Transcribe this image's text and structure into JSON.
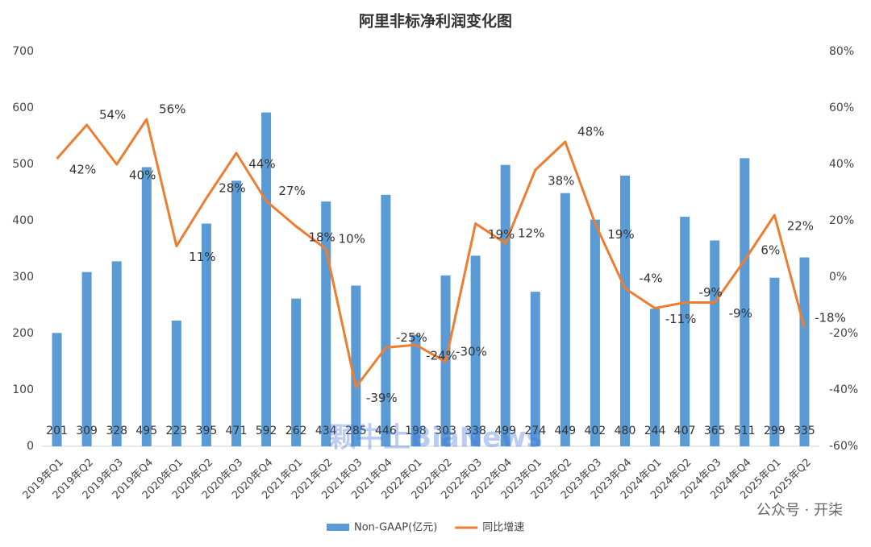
{
  "chart_data": {
    "type": "bar_line",
    "title": "阿里非标净利润变化图",
    "categories": [
      "2019年Q1",
      "2019年Q2",
      "2019年Q3",
      "2019年Q4",
      "2020年Q1",
      "2020年Q2",
      "2020年Q3",
      "2020年Q4",
      "2021年Q1",
      "2021年Q2",
      "2021年Q3",
      "2021年Q4",
      "2022年Q1",
      "2022年Q2",
      "2022年Q3",
      "2022年Q4",
      "2023年Q1",
      "2023年Q2",
      "2023年Q3",
      "2023年Q4",
      "2024年Q1",
      "2024年Q2",
      "2024年Q3",
      "2024年Q4",
      "2025年Q1",
      "2025年Q2"
    ],
    "series": [
      {
        "name": "Non-GAAP(亿元)",
        "color": "#5b9bd5",
        "kind": "bar",
        "values": [
          201,
          309,
          328,
          495,
          223,
          395,
          471,
          592,
          262,
          434,
          285,
          446,
          198,
          303,
          338,
          499,
          274,
          449,
          402,
          480,
          244,
          407,
          365,
          511,
          299,
          335
        ]
      },
      {
        "name": "同比增速",
        "color": "#ed7d31",
        "kind": "line",
        "axis": "y2",
        "values": [
          42,
          54,
          40,
          56,
          11,
          28,
          44,
          27,
          18,
          10,
          -39,
          -25,
          -24,
          -30,
          19,
          12,
          38,
          48,
          19,
          -4,
          -11,
          -9,
          -9,
          6,
          22,
          -18
        ],
        "value_labels": [
          "42%",
          "54%",
          "40%",
          "56%",
          "11%",
          "28%",
          "44%",
          "27%",
          "18%",
          "10%",
          "-39%",
          "-25%",
          "-24%",
          "-30%",
          "19%",
          "12%",
          "38%",
          "48%",
          "19%",
          "-4%",
          "-11%",
          "-9%",
          "-9%",
          "6%",
          "22%",
          "-18%"
        ]
      }
    ],
    "ylim": [
      0,
      700
    ],
    "yticks": [
      0,
      100,
      200,
      300,
      400,
      500,
      600,
      700
    ],
    "y2lim": [
      -60,
      80
    ],
    "y2ticks": [
      {
        "value": -60,
        "label": "-60%"
      },
      {
        "value": -40,
        "label": "-40%"
      },
      {
        "value": -20,
        "label": "-20%"
      },
      {
        "value": 0,
        "label": "0%"
      },
      {
        "value": 20,
        "label": "20%"
      },
      {
        "value": 40,
        "label": "40%"
      },
      {
        "value": 60,
        "label": "60%"
      },
      {
        "value": 80,
        "label": "80%"
      }
    ],
    "grid": false,
    "legend": "bottom",
    "watermarks": [
      "颗牛土BiaNews",
      "公众号 · 开柒"
    ]
  }
}
